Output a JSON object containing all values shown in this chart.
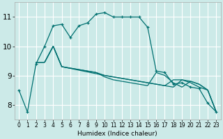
{
  "xlabel": "Humidex (Indice chaleur)",
  "bg_color": "#cceae8",
  "grid_color": "#ffffff",
  "line_color": "#007070",
  "xlim": [
    -0.5,
    23.5
  ],
  "ylim": [
    7.5,
    11.5
  ],
  "xticks": [
    0,
    1,
    2,
    3,
    4,
    5,
    6,
    7,
    8,
    9,
    10,
    11,
    12,
    13,
    14,
    15,
    16,
    17,
    18,
    19,
    20,
    21,
    22,
    23
  ],
  "yticks": [
    8,
    9,
    10,
    11
  ],
  "lines": [
    {
      "x": [
        0,
        1,
        2,
        3,
        4,
        5,
        6,
        7,
        8,
        9,
        10,
        11,
        12,
        13,
        14,
        15,
        16,
        17,
        18,
        19,
        20,
        21,
        22,
        23
      ],
      "y": [
        8.5,
        7.75,
        9.4,
        10.0,
        10.7,
        10.75,
        10.3,
        10.7,
        10.8,
        11.1,
        11.15,
        11.0,
        11.0,
        11.0,
        11.0,
        10.65,
        9.15,
        9.1,
        8.7,
        8.75,
        8.6,
        8.55,
        8.05,
        7.75
      ],
      "marker": true
    },
    {
      "x": [
        2,
        3,
        4,
        5,
        6,
        7,
        8,
        9,
        10,
        11,
        12,
        13,
        14,
        15,
        16,
        17,
        18,
        19,
        20,
        21,
        22,
        23
      ],
      "y": [
        9.45,
        9.45,
        10.0,
        9.3,
        9.25,
        9.2,
        9.15,
        9.1,
        9.0,
        8.95,
        8.9,
        8.85,
        8.8,
        8.75,
        8.7,
        8.65,
        8.6,
        8.85,
        8.8,
        8.7,
        8.5,
        7.75
      ],
      "marker": false
    },
    {
      "x": [
        2,
        3,
        4,
        5,
        6,
        7,
        8,
        9,
        10,
        11,
        12,
        13,
        14,
        15,
        16,
        17,
        18,
        19,
        20,
        21,
        22,
        23
      ],
      "y": [
        9.45,
        9.45,
        10.0,
        9.3,
        9.25,
        9.2,
        9.15,
        9.1,
        8.95,
        8.85,
        8.8,
        8.75,
        8.7,
        8.65,
        9.1,
        9.0,
        8.75,
        8.6,
        8.8,
        8.7,
        8.5,
        7.75
      ],
      "marker": false
    },
    {
      "x": [
        2,
        3,
        4,
        5,
        10,
        15,
        16,
        17,
        18,
        19,
        20,
        21,
        22,
        23
      ],
      "y": [
        9.45,
        9.45,
        10.0,
        9.3,
        9.0,
        8.75,
        8.7,
        8.65,
        8.85,
        8.85,
        8.75,
        8.6,
        8.5,
        7.75
      ],
      "marker": false
    }
  ],
  "xlabel_fontsize": 6.5,
  "tick_fontsize_x": 5.5,
  "tick_fontsize_y": 7.5
}
